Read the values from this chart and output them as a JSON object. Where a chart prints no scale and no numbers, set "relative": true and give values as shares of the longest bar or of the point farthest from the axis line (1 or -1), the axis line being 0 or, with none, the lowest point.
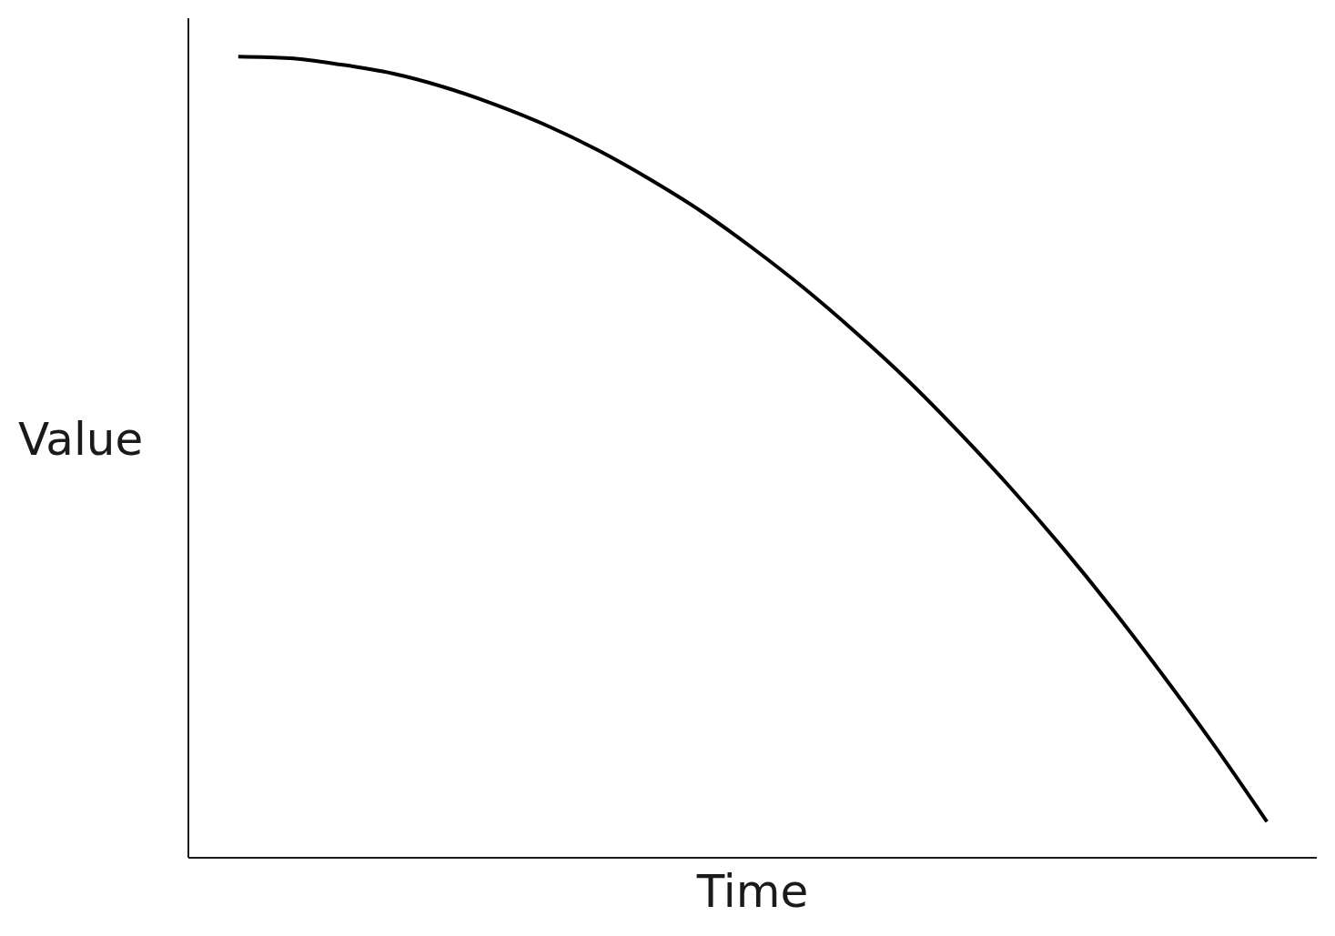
{
  "chart_data": {
    "type": "line",
    "xlabel": "Time",
    "ylabel": "Value",
    "relative": true,
    "tick_labels": false,
    "marker": "none",
    "categories": [
      null,
      null,
      null,
      null,
      null,
      null,
      null,
      null,
      null,
      null,
      null,
      null,
      null,
      null,
      null,
      null,
      null,
      null,
      null,
      null,
      null
    ],
    "series": [
      {
        "color": "#000000",
        "values": [
          1,
          0.998,
          0.99,
          0.979,
          0.962,
          0.94,
          0.914,
          0.883,
          0.847,
          0.807,
          0.761,
          0.711,
          0.656,
          0.597,
          0.532,
          0.463,
          0.389,
          0.31,
          0.226,
          0.138,
          0.045
        ]
      }
    ]
  }
}
